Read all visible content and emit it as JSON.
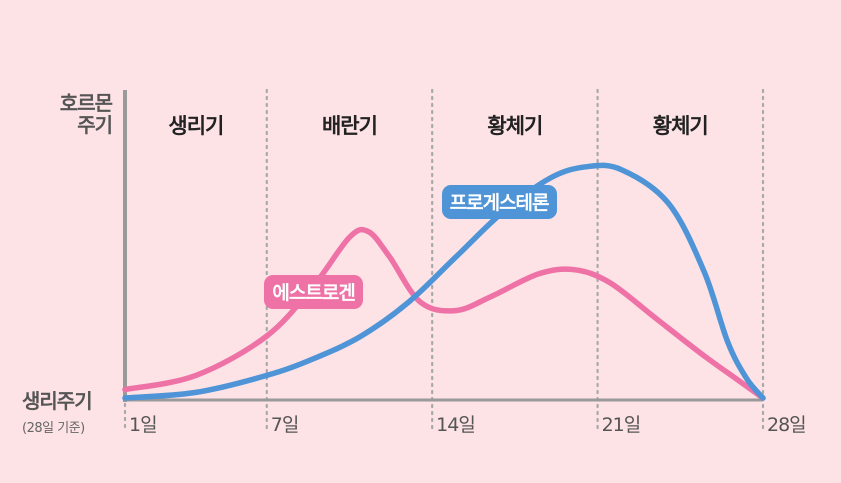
{
  "colors": {
    "background": "#fde3e6",
    "estrogen": "#ee72a6",
    "progesterone": "#4e94d6",
    "divider": "#a8a8a8",
    "axis": "#9a9a9a"
  },
  "chart_data": {
    "type": "line",
    "ylabel": "호르몬\n주기",
    "xlabel": "생리주기",
    "xlabel_note": "(28일 기준)",
    "x_ticks": [
      {
        "day": 1,
        "label": "1일"
      },
      {
        "day": 7,
        "label": "7일"
      },
      {
        "day": 14,
        "label": "14일"
      },
      {
        "day": 21,
        "label": "21일"
      },
      {
        "day": 28,
        "label": "28일"
      }
    ],
    "phases": [
      {
        "label": "생리기",
        "start": 1,
        "end": 7
      },
      {
        "label": "배란기",
        "start": 7,
        "end": 14
      },
      {
        "label": "황체기",
        "start": 14,
        "end": 21
      },
      {
        "label": "황체기",
        "start": 21,
        "end": 28
      }
    ],
    "xlim": [
      1,
      28
    ],
    "ylim": [
      0,
      100
    ],
    "grid": "vertical dotted dividers at phase boundaries",
    "series": [
      {
        "name": "에스트로겐",
        "color": "#ee72a6",
        "points": [
          [
            1,
            3
          ],
          [
            4,
            8
          ],
          [
            7,
            22
          ],
          [
            9,
            40
          ],
          [
            10.5,
            57
          ],
          [
            11.3,
            59
          ],
          [
            12.2,
            50
          ],
          [
            13.5,
            34
          ],
          [
            15,
            31
          ],
          [
            16.5,
            36
          ],
          [
            18.5,
            44
          ],
          [
            20,
            45.5
          ],
          [
            21.5,
            41
          ],
          [
            23.5,
            28
          ],
          [
            25.5,
            15
          ],
          [
            27,
            6
          ],
          [
            28,
            0
          ]
        ]
      },
      {
        "name": "프로게스테론",
        "color": "#4e94d6",
        "points": [
          [
            1,
            0
          ],
          [
            4,
            2
          ],
          [
            7,
            8
          ],
          [
            9,
            14
          ],
          [
            11,
            22
          ],
          [
            13,
            34
          ],
          [
            15,
            50
          ],
          [
            17,
            66
          ],
          [
            19,
            78
          ],
          [
            20.5,
            82
          ],
          [
            22,
            81
          ],
          [
            24,
            69
          ],
          [
            25.5,
            45
          ],
          [
            26.5,
            20
          ],
          [
            27.3,
            7
          ],
          [
            28,
            0
          ]
        ]
      }
    ]
  }
}
